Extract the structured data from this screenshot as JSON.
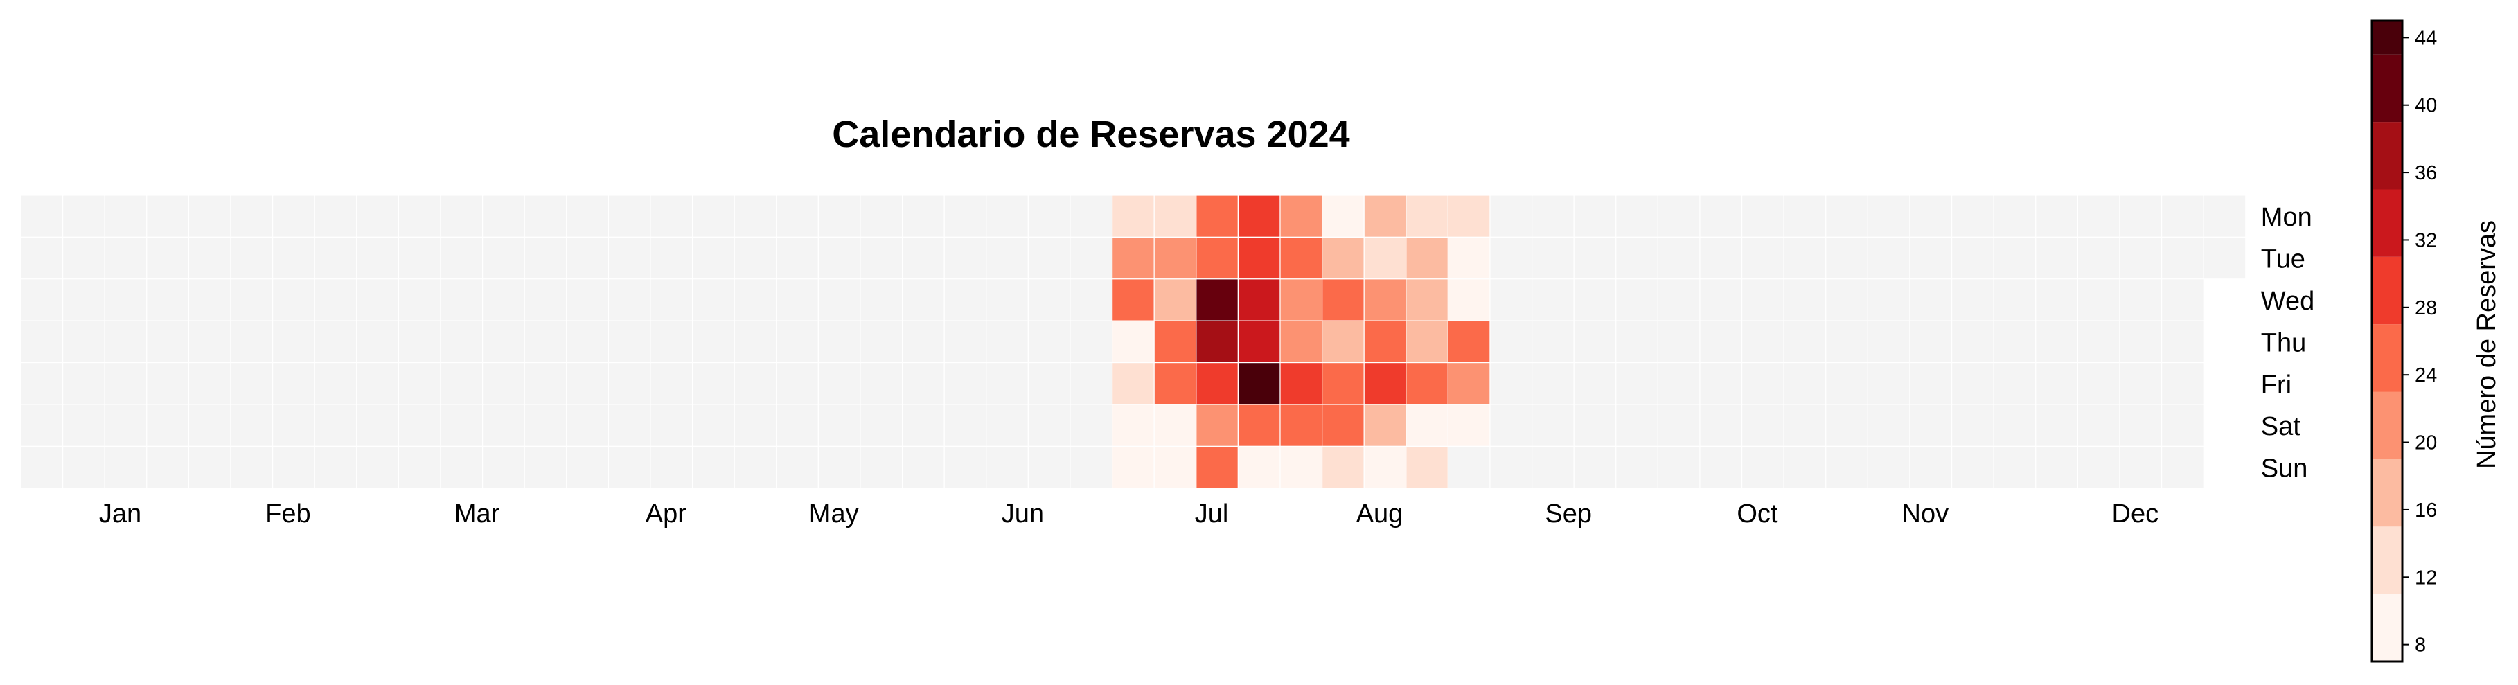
{
  "chart_data": {
    "type": "heatmap",
    "title": "Calendario de Reservas 2024",
    "year": 2024,
    "weekday_labels": [
      "Mon",
      "Tue",
      "Wed",
      "Thu",
      "Fri",
      "Sat",
      "Sun"
    ],
    "month_labels": [
      "Jan",
      "Feb",
      "Mar",
      "Apr",
      "May",
      "Jun",
      "Jul",
      "Aug",
      "Sep",
      "Oct",
      "Nov",
      "Dec"
    ],
    "colorbar": {
      "label": "Número de Reservas",
      "ticks": [
        8,
        12,
        16,
        20,
        24,
        28,
        32,
        36,
        40,
        44
      ],
      "range": [
        7,
        45
      ],
      "levels": [
        7,
        11,
        15,
        19,
        23,
        27,
        31,
        35,
        39,
        43,
        45
      ],
      "level_colors": [
        "#fff5f0",
        "#fee0d2",
        "#fcbba1",
        "#fc9272",
        "#fb6a4a",
        "#ef3b2c",
        "#cb181d",
        "#a50f15",
        "#67000d",
        "#4a000a"
      ]
    },
    "empty_color": "#f4f4f4",
    "x_unit": "ISO week of 2024",
    "y_unit": "weekday (0 = Mon … 6 = Sun)",
    "series": [
      {
        "values": [
          {
            "week": 27,
            "weekday": 0,
            "value": 13
          },
          {
            "week": 27,
            "weekday": 1,
            "value": 21
          },
          {
            "week": 27,
            "weekday": 2,
            "value": 25
          },
          {
            "week": 27,
            "weekday": 3,
            "value": 9
          },
          {
            "week": 27,
            "weekday": 4,
            "value": 13
          },
          {
            "week": 27,
            "weekday": 5,
            "value": 9
          },
          {
            "week": 27,
            "weekday": 6,
            "value": 9
          },
          {
            "week": 28,
            "weekday": 0,
            "value": 13
          },
          {
            "week": 28,
            "weekday": 1,
            "value": 21
          },
          {
            "week": 28,
            "weekday": 2,
            "value": 17
          },
          {
            "week": 28,
            "weekday": 3,
            "value": 25
          },
          {
            "week": 28,
            "weekday": 4,
            "value": 25
          },
          {
            "week": 28,
            "weekday": 5,
            "value": 9
          },
          {
            "week": 28,
            "weekday": 6,
            "value": 9
          },
          {
            "week": 29,
            "weekday": 0,
            "value": 25
          },
          {
            "week": 29,
            "weekday": 1,
            "value": 25
          },
          {
            "week": 29,
            "weekday": 2,
            "value": 42
          },
          {
            "week": 29,
            "weekday": 3,
            "value": 36
          },
          {
            "week": 29,
            "weekday": 4,
            "value": 29
          },
          {
            "week": 29,
            "weekday": 5,
            "value": 21
          },
          {
            "week": 29,
            "weekday": 6,
            "value": 25
          },
          {
            "week": 30,
            "weekday": 0,
            "value": 29
          },
          {
            "week": 30,
            "weekday": 1,
            "value": 29
          },
          {
            "week": 30,
            "weekday": 2,
            "value": 33
          },
          {
            "week": 30,
            "weekday": 3,
            "value": 33
          },
          {
            "week": 30,
            "weekday": 4,
            "value": 44
          },
          {
            "week": 30,
            "weekday": 5,
            "value": 25
          },
          {
            "week": 30,
            "weekday": 6,
            "value": 9
          },
          {
            "week": 31,
            "weekday": 0,
            "value": 21
          },
          {
            "week": 31,
            "weekday": 1,
            "value": 25
          },
          {
            "week": 31,
            "weekday": 2,
            "value": 21
          },
          {
            "week": 31,
            "weekday": 3,
            "value": 21
          },
          {
            "week": 31,
            "weekday": 4,
            "value": 29
          },
          {
            "week": 31,
            "weekday": 5,
            "value": 25
          },
          {
            "week": 31,
            "weekday": 6,
            "value": 9
          },
          {
            "week": 32,
            "weekday": 0,
            "value": 9
          },
          {
            "week": 32,
            "weekday": 1,
            "value": 17
          },
          {
            "week": 32,
            "weekday": 2,
            "value": 25
          },
          {
            "week": 32,
            "weekday": 3,
            "value": 17
          },
          {
            "week": 32,
            "weekday": 4,
            "value": 25
          },
          {
            "week": 32,
            "weekday": 5,
            "value": 25
          },
          {
            "week": 32,
            "weekday": 6,
            "value": 13
          },
          {
            "week": 33,
            "weekday": 0,
            "value": 17
          },
          {
            "week": 33,
            "weekday": 1,
            "value": 13
          },
          {
            "week": 33,
            "weekday": 2,
            "value": 21
          },
          {
            "week": 33,
            "weekday": 3,
            "value": 25
          },
          {
            "week": 33,
            "weekday": 4,
            "value": 29
          },
          {
            "week": 33,
            "weekday": 5,
            "value": 17
          },
          {
            "week": 33,
            "weekday": 6,
            "value": 9
          },
          {
            "week": 34,
            "weekday": 0,
            "value": 13
          },
          {
            "week": 34,
            "weekday": 1,
            "value": 17
          },
          {
            "week": 34,
            "weekday": 2,
            "value": 17
          },
          {
            "week": 34,
            "weekday": 3,
            "value": 17
          },
          {
            "week": 34,
            "weekday": 4,
            "value": 25
          },
          {
            "week": 34,
            "weekday": 5,
            "value": 9
          },
          {
            "week": 34,
            "weekday": 6,
            "value": 13
          },
          {
            "week": 35,
            "weekday": 0,
            "value": 13
          },
          {
            "week": 35,
            "weekday": 1,
            "value": 9
          },
          {
            "week": 35,
            "weekday": 2,
            "value": 9
          },
          {
            "week": 35,
            "weekday": 3,
            "value": 25
          },
          {
            "week": 35,
            "weekday": 4,
            "value": 21
          },
          {
            "week": 35,
            "weekday": 5,
            "value": 9
          }
        ]
      }
    ]
  }
}
